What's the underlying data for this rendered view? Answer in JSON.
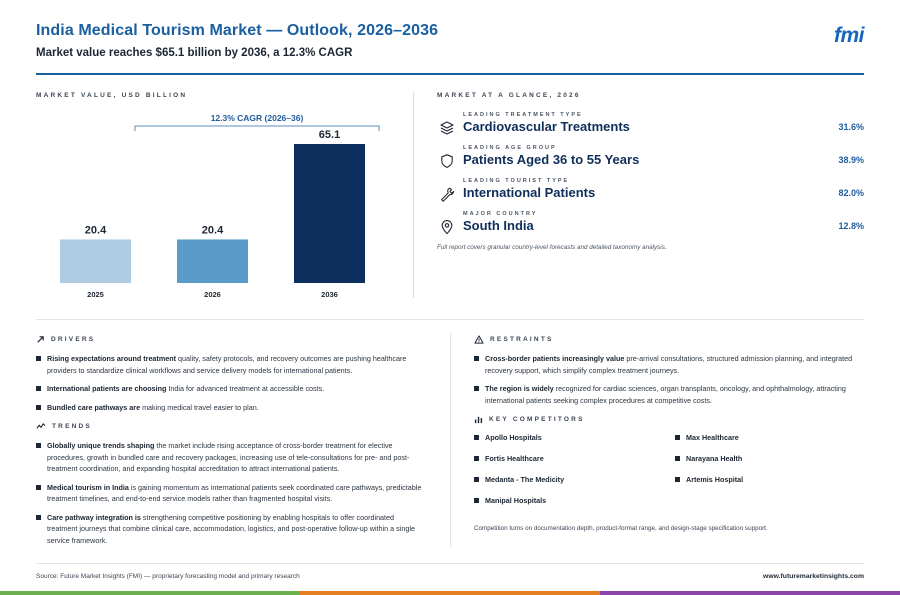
{
  "header": {
    "title": "India Medical Tourism Market — Outlook, 2026–2036",
    "subtitle": "Market value reaches $65.1 billion by 2036, a 12.3% CAGR",
    "logo": "fmi"
  },
  "chart_panel": {
    "label": "MARKET VALUE, USD BILLION",
    "cagr_label": "12.3% CAGR (2026–36)"
  },
  "chart_data": {
    "type": "bar",
    "title": "",
    "xlabel": "",
    "ylabel": "",
    "categories": [
      "2025",
      "2026",
      "2036"
    ],
    "values": [
      20.4,
      20.4,
      65.1
    ],
    "value_labels": [
      "20.4",
      "20.4",
      "65.1"
    ],
    "colors": [
      "#b0cce3",
      "#5a9bc9",
      "#0d2f5e"
    ],
    "ylim": [
      0,
      70
    ],
    "grid": false,
    "annotation": "12.3% CAGR (2026–36)"
  },
  "glance": {
    "label": "MARKET AT A GLANCE, 2026",
    "items": [
      {
        "label": "LEADING TREATMENT TYPE",
        "value": "Cardiovascular Treatments",
        "pct": "31.6%",
        "icon": "layers-icon"
      },
      {
        "label": "LEADING AGE GROUP",
        "value": "Patients Aged 36 to 55 Years",
        "pct": "38.9%",
        "icon": "shield-icon"
      },
      {
        "label": "LEADING TOURIST TYPE",
        "value": "International Patients",
        "pct": "82.0%",
        "icon": "wrench-icon"
      },
      {
        "label": "MAJOR COUNTRY",
        "value": "South India",
        "pct": "12.8%",
        "icon": "location-pin-icon"
      }
    ],
    "note": "Full report covers granular country-level forecasts and detailed taxonomy analysis."
  },
  "drivers": {
    "label": "DRIVERS",
    "items": [
      {
        "bold": "Rising expectations around treatment",
        "text": " quality, safety protocols, and recovery outcomes are pushing healthcare providers to standardize clinical workflows and service delivery models for international patients."
      },
      {
        "bold": "International patients are choosing",
        "text": " India for advanced treatment at accessible costs."
      },
      {
        "bold": "Bundled care pathways are",
        "text": " making medical travel easier to plan."
      }
    ]
  },
  "trends": {
    "label": "TRENDS",
    "items": [
      {
        "bold": "Globally unique trends shaping",
        "text": " the market include rising acceptance of cross-border treatment for elective procedures, growth in bundled care and recovery packages, increasing use of tele-consultations for pre- and post-treatment coordination, and expanding hospital accreditation to attract international patients."
      },
      {
        "bold": "Medical tourism in India",
        "text": " is gaining momentum as international patients seek coordinated care pathways, predictable treatment timelines, and end-to-end service models rather than fragmented hospital visits."
      },
      {
        "bold": "Care pathway integration is",
        "text": " strengthening competitive positioning by enabling hospitals to offer coordinated treatment journeys that combine clinical care, accommodation, logistics, and post-operative follow-up within a single service framework."
      }
    ]
  },
  "restraints": {
    "label": "RESTRAINTS",
    "items": [
      {
        "bold": "Cross-border patients increasingly value",
        "text": " pre-arrival consultations, structured admission planning, and integrated recovery support, which simplify complex treatment journeys."
      },
      {
        "bold": "The region is widely",
        "text": " recognized for cardiac sciences, organ transplants, oncology, and ophthalmology, attracting international patients seeking complex procedures at competitive costs."
      }
    ]
  },
  "competitors": {
    "label": "KEY COMPETITORS",
    "items": [
      "Apollo Hospitals",
      "Max Healthcare",
      "Fortis Healthcare",
      "Narayana Health",
      "Medanta - The Medicity",
      "Artemis Hospital",
      "Manipal Hospitals"
    ],
    "note": "Competition turns on documentation depth, product-format range, and design-stage specification support."
  },
  "footer": {
    "source": "Source: Future Market Insights (FMI) — proprietary forecasting model and primary research",
    "site": "www.futuremarketinsights.com",
    "band_colors": [
      "#6ab04c",
      "#e67e22",
      "#8e44ad"
    ]
  }
}
